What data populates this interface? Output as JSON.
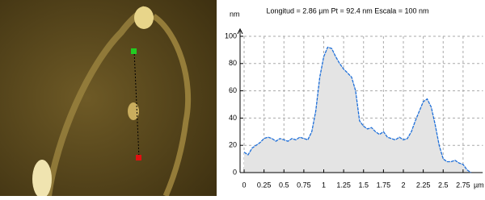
{
  "chart_data": {
    "type": "area",
    "title": "Longitud = 2.86 µm Pt = 92.4 nm Escala = 100 nm",
    "y_label": "nm",
    "x_label": "µm",
    "x": [
      0,
      0.05,
      0.1,
      0.15,
      0.2,
      0.25,
      0.3,
      0.35,
      0.4,
      0.45,
      0.5,
      0.55,
      0.6,
      0.65,
      0.7,
      0.75,
      0.8,
      0.85,
      0.9,
      0.95,
      1.0,
      1.05,
      1.1,
      1.15,
      1.2,
      1.25,
      1.3,
      1.35,
      1.4,
      1.45,
      1.5,
      1.55,
      1.6,
      1.65,
      1.7,
      1.75,
      1.8,
      1.85,
      1.9,
      1.95,
      2.0,
      2.05,
      2.1,
      2.15,
      2.2,
      2.25,
      2.3,
      2.35,
      2.4,
      2.45,
      2.5,
      2.55,
      2.6,
      2.65,
      2.7,
      2.75,
      2.8,
      2.85
    ],
    "values": [
      15,
      13,
      18,
      20,
      22,
      25,
      26,
      25,
      23,
      25,
      24,
      23,
      25,
      24,
      26,
      25,
      24,
      30,
      45,
      70,
      85,
      92,
      91,
      85,
      80,
      76,
      73,
      70,
      60,
      38,
      34,
      32,
      33,
      30,
      28,
      30,
      26,
      25,
      24,
      26,
      24,
      25,
      30,
      38,
      45,
      52,
      54,
      48,
      35,
      20,
      10,
      8,
      8,
      9,
      7,
      6,
      2,
      0
    ],
    "color": "#1e6fd9",
    "fill": "#e4e4e4",
    "xlim": [
      0,
      3
    ],
    "ylim": [
      0,
      100
    ],
    "xticks": [
      0,
      0.25,
      0.5,
      0.75,
      1,
      1.25,
      1.5,
      1.75,
      2,
      2.25,
      2.5,
      2.75
    ],
    "yticks": [
      0,
      20,
      40,
      60,
      80,
      100
    ],
    "grid": true
  }
}
